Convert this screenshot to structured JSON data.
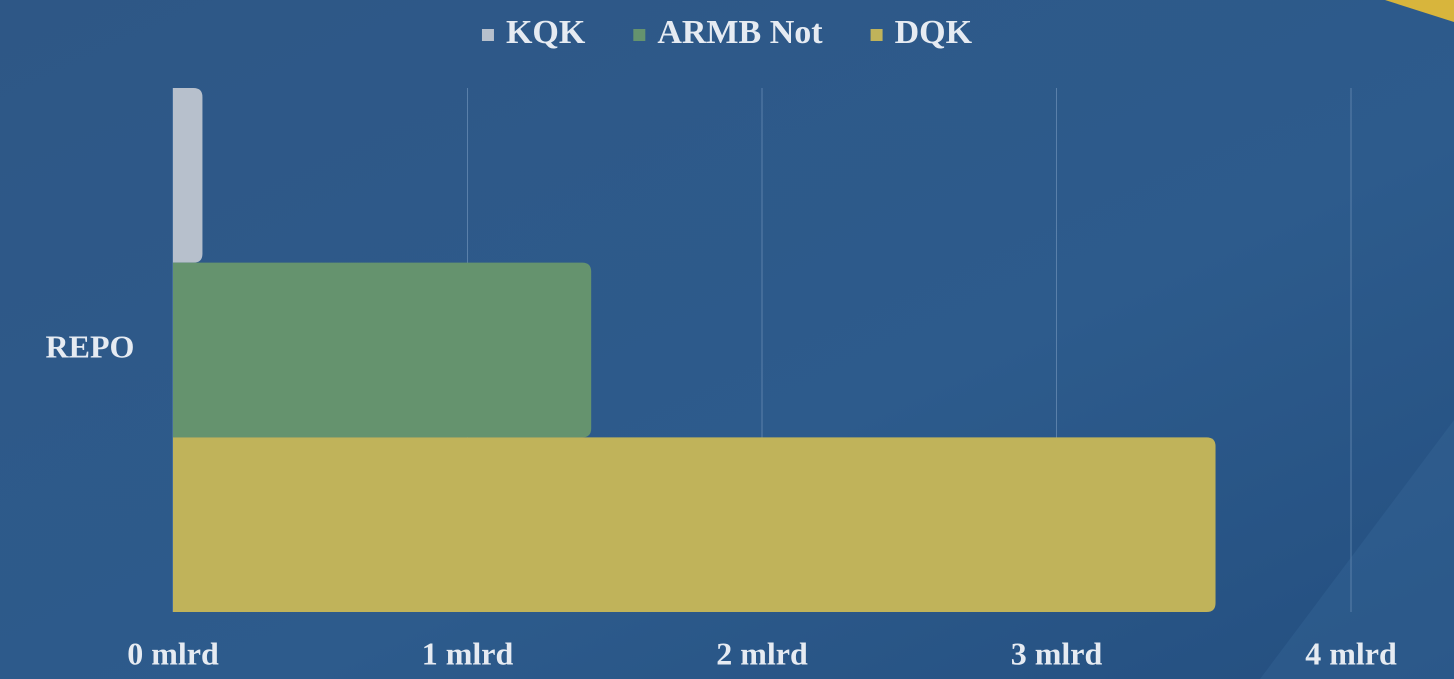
{
  "chart_data": {
    "type": "barh",
    "categories": [
      "REPO"
    ],
    "series": [
      {
        "name": "KQK",
        "color": "#b7c0cc",
        "values": [
          0.1
        ]
      },
      {
        "name": "ARMB Not",
        "color": "#65936e",
        "values": [
          1.42
        ]
      },
      {
        "name": "DQK",
        "color": "#c0b35a",
        "values": [
          3.54
        ]
      }
    ],
    "xlim": [
      0,
      4
    ],
    "xticks": [
      {
        "value": 0,
        "label": "0 mlrd"
      },
      {
        "value": 1,
        "label": "1 mlrd"
      },
      {
        "value": 2,
        "label": "2 mlrd"
      },
      {
        "value": 3,
        "label": "3 mlrd"
      },
      {
        "value": 4,
        "label": "4 mlrd"
      }
    ],
    "grid": true,
    "legend": "top"
  }
}
